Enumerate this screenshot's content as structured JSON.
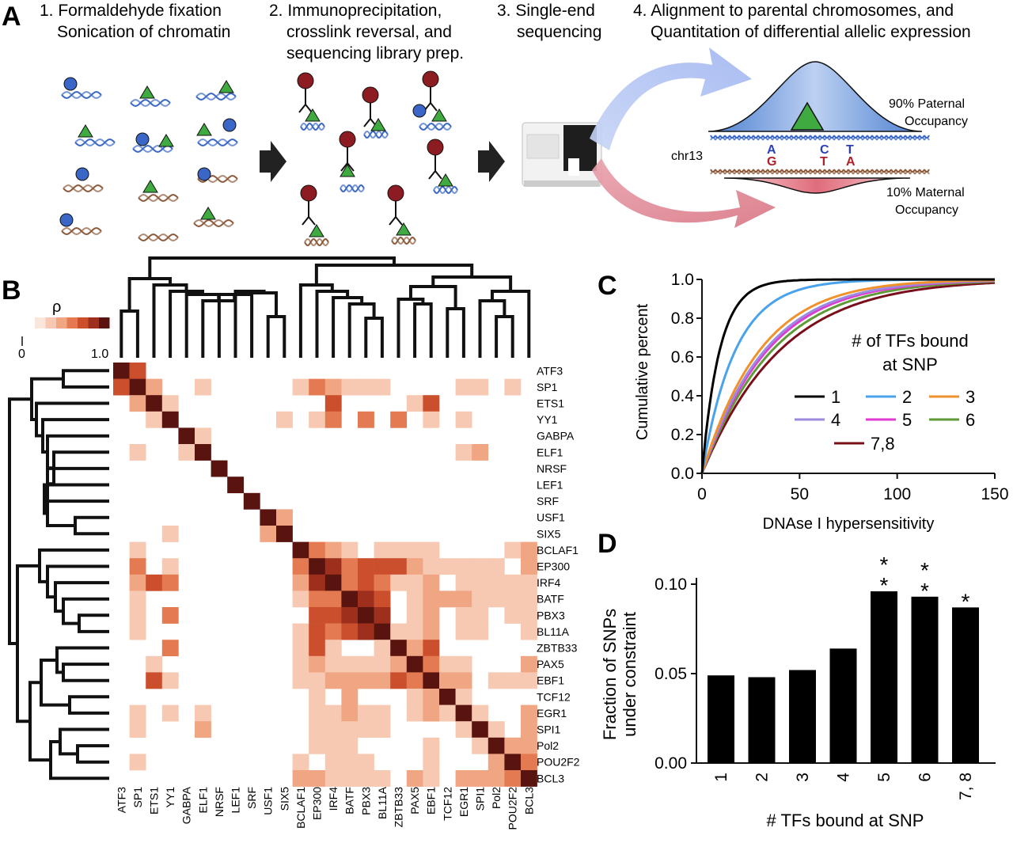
{
  "panelA": {
    "letter": "A",
    "steps": [
      {
        "lines": [
          "1. Formaldehyde fixation",
          "Sonication of chromatin"
        ]
      },
      {
        "lines": [
          "2. Immunoprecipitation,",
          "crosslink reversal, and",
          "sequencing library prep."
        ]
      },
      {
        "lines": [
          "3. Single-end",
          "sequencing"
        ]
      },
      {
        "lines": [
          "4. Alignment to parental chromosomes, and",
          "Quantitation of differential allelic expression"
        ]
      }
    ],
    "paternal": [
      "90% Paternal",
      "Occupancy"
    ],
    "maternal": [
      "10% Maternal",
      "Occupancy"
    ],
    "chrom": "chr13",
    "paternal_alleles": [
      "A",
      "C",
      "T"
    ],
    "maternal_alleles": [
      "G",
      "T",
      "A"
    ],
    "colors": {
      "paternal": "#2a3fbf",
      "maternal": "#b0202a",
      "circle": "#3a66c8",
      "triangle": "#3faa3f",
      "antibody_ball": "#8c1c22"
    }
  },
  "panelB": {
    "letter": "B",
    "legend_symbol": "ρ",
    "legend_min": "0",
    "legend_max": "1.0",
    "genes": [
      "ATF3",
      "SP1",
      "ETS1",
      "YY1",
      "GABPA",
      "ELF1",
      "NRSF",
      "LEF1",
      "SRF",
      "USF1",
      "SIX5",
      "BCLAF1",
      "EP300",
      "IRF4",
      "BATF",
      "PBX3",
      "BL11A",
      "ZBTB33",
      "PAX5",
      "EBF1",
      "TCF12",
      "EGR1",
      "SPI1",
      "Pol2",
      "POU2F2",
      "BCL3"
    ],
    "scale_colors": [
      "#fbe6dc",
      "#f7c9b2",
      "#f0a583",
      "#e47a52",
      "#cc4f2d",
      "#9e2f1c",
      "#5a1410"
    ]
  },
  "panelC": {
    "letter": "C",
    "ylabel": "Cumulative percent",
    "xlabel": "DNAse I hypersensitivity",
    "yticks": [
      "0.0",
      "0.2",
      "0.4",
      "0.6",
      "0.8",
      "1.0"
    ],
    "xticks": [
      "0",
      "50",
      "100",
      "150"
    ],
    "legend_title": [
      "# of TFs bound",
      "at SNP"
    ],
    "series": [
      {
        "name": "1",
        "color": "#000000",
        "k": 9
      },
      {
        "name": "2",
        "color": "#4aa3ea",
        "k": 17
      },
      {
        "name": "3",
        "color": "#f0922c",
        "k": 23
      },
      {
        "name": "4",
        "color": "#9b8ae0",
        "k": 25
      },
      {
        "name": "5",
        "color": "#e03ad0",
        "k": 26
      },
      {
        "name": "6",
        "color": "#5e9a36",
        "k": 28
      },
      {
        "name": "7,8",
        "color": "#7a0f1c",
        "k": 31
      }
    ]
  },
  "panelD": {
    "letter": "D",
    "ylabel": [
      "Fraction of SNPs",
      "under constraint"
    ],
    "xlabel": "# TFs bound at SNP",
    "yticks": [
      "0.00",
      "0.05",
      "0.10"
    ],
    "chart_data": {
      "type": "bar",
      "categories": [
        "1",
        "2",
        "3",
        "4",
        "5",
        "6",
        "7, 8"
      ],
      "values": [
        0.049,
        0.048,
        0.052,
        0.064,
        0.096,
        0.093,
        0.087
      ],
      "stars": [
        "",
        "",
        "",
        "",
        "* *",
        "* *",
        "*"
      ],
      "ylim": [
        0,
        0.11
      ]
    }
  }
}
